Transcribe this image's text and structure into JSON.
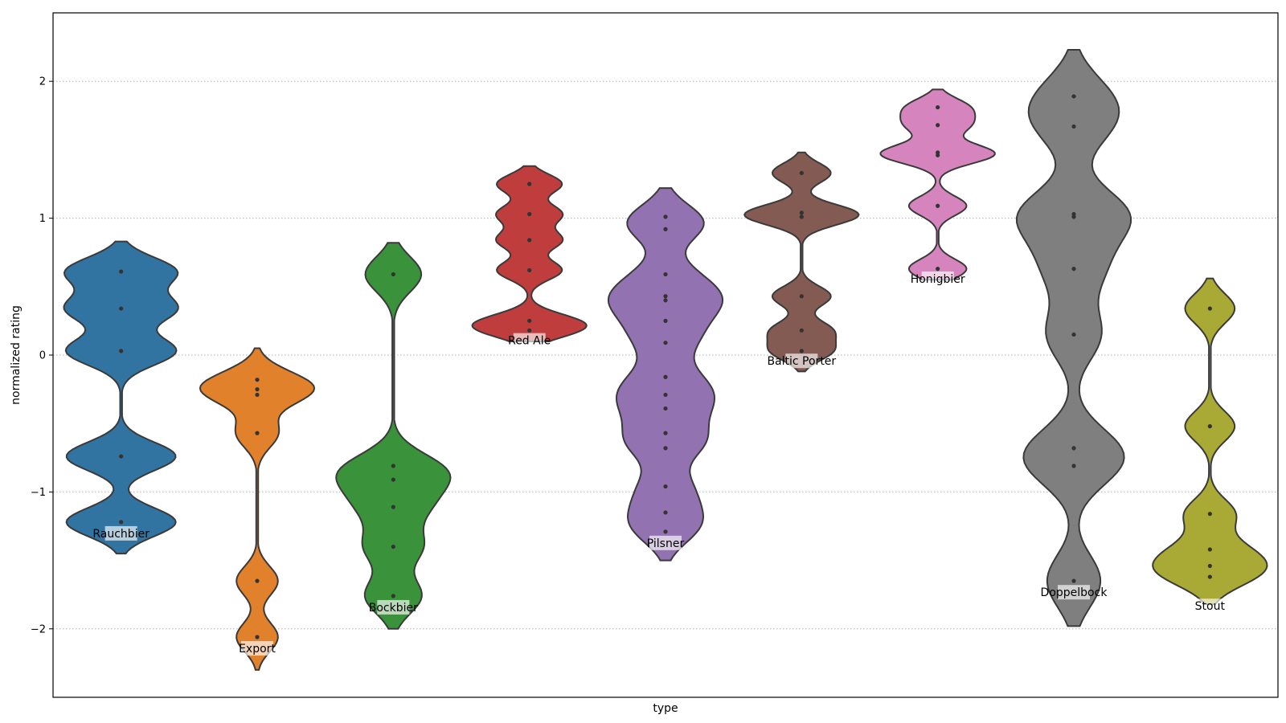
{
  "chart_data": {
    "type": "violin",
    "xlabel": "type",
    "ylabel": "normalized rating",
    "ylim": [
      -2.5,
      2.5
    ],
    "yticks": [
      -2,
      -1,
      0,
      1,
      2
    ],
    "ytick_labels": [
      "−2",
      "−1",
      "0",
      "1",
      "2"
    ],
    "grid": "y-dotted",
    "categories": [
      {
        "name": "Rauchbier",
        "color": "#3274a1",
        "points": [
          0.61,
          0.34,
          0.03,
          -0.74,
          -1.22
        ],
        "min": -1.45,
        "max": 0.83,
        "label_y": -1.32
      },
      {
        "name": "Export",
        "color": "#e1812c",
        "points": [
          -0.18,
          -0.25,
          -0.29,
          -0.57,
          -1.65,
          -2.06
        ],
        "min": -2.3,
        "max": 0.05,
        "label_y": -2.16
      },
      {
        "name": "Bockbier",
        "color": "#3a923a",
        "points": [
          0.59,
          -0.81,
          -0.91,
          -1.11,
          -1.4,
          -1.76
        ],
        "min": -2.0,
        "max": 0.82,
        "label_y": -1.86
      },
      {
        "name": "Red Ale",
        "color": "#c03d3e",
        "points": [
          1.25,
          1.03,
          0.84,
          0.62,
          0.25,
          0.18
        ],
        "min": 0.1,
        "max": 1.38,
        "label_y": 0.09
      },
      {
        "name": "Pilsner",
        "color": "#9372b2",
        "points": [
          1.01,
          0.92,
          0.59,
          0.43,
          0.4,
          0.25,
          0.09,
          -0.16,
          -0.29,
          -0.39,
          -0.57,
          -0.68,
          -0.96,
          -1.15,
          -1.29
        ],
        "min": -1.5,
        "max": 1.22,
        "label_y": -1.39
      },
      {
        "name": "Baltic Porter",
        "color": "#845b53",
        "points": [
          1.33,
          1.04,
          1.01,
          0.43,
          0.18,
          0.03
        ],
        "min": -0.12,
        "max": 1.48,
        "label_y": -0.06
      },
      {
        "name": "Honigbier",
        "color": "#d684bd",
        "points": [
          1.81,
          1.68,
          1.48,
          1.46,
          1.09,
          0.63
        ],
        "min": 0.55,
        "max": 1.94,
        "label_y": 0.54
      },
      {
        "name": "Doppelbock",
        "color": "#7f7f7f",
        "points": [
          1.89,
          1.67,
          1.03,
          1.01,
          0.63,
          0.15,
          -0.68,
          -0.81,
          -1.65
        ],
        "min": -1.98,
        "max": 2.23,
        "label_y": -1.75
      },
      {
        "name": "Stout",
        "color": "#a9aa35",
        "points": [
          0.34,
          -0.52,
          -1.16,
          -1.42,
          -1.54,
          -1.62
        ],
        "min": -1.82,
        "max": 0.56,
        "label_y": -1.85
      }
    ]
  }
}
